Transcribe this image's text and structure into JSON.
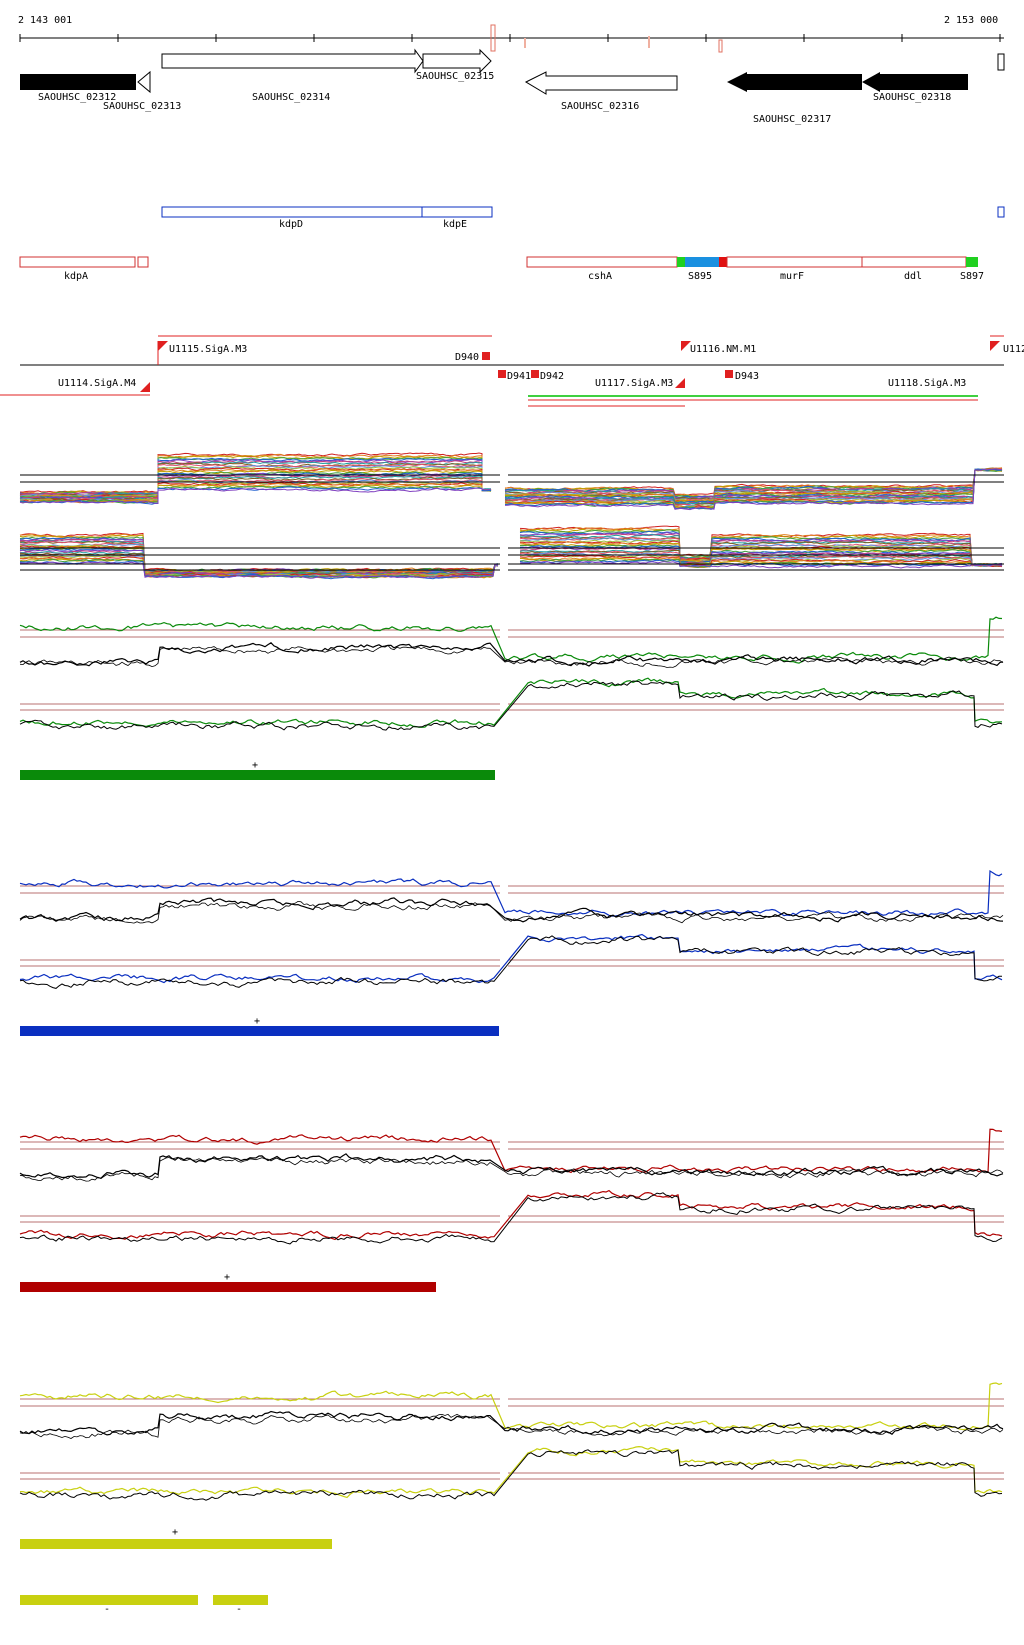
{
  "ruler": {
    "start_label": "2 143 001",
    "end_label": "2 153 000"
  },
  "genes": [
    {
      "label": "SAOUHSC_02312",
      "filled": true,
      "dir": "right"
    },
    {
      "label": "SAOUHSC_02313",
      "filled": false,
      "dir": "left"
    },
    {
      "label": "SAOUHSC_02314",
      "filled": false,
      "dir": "right"
    },
    {
      "label": "SAOUHSC_02315",
      "filled": false,
      "dir": "right"
    },
    {
      "label": "SAOUHSC_02316",
      "filled": false,
      "dir": "left"
    },
    {
      "label": "SAOUHSC_02317",
      "filled": true,
      "dir": "left"
    },
    {
      "label": "SAOUHSC_02318",
      "filled": true,
      "dir": "left"
    }
  ],
  "operons_blue": [
    {
      "label": "kdpD"
    },
    {
      "label": "kdpE"
    }
  ],
  "operons_red": [
    {
      "label": "kdpA"
    },
    {
      "label": "cshA"
    },
    {
      "label": "S895"
    },
    {
      "label": "murF"
    },
    {
      "label": "ddl"
    },
    {
      "label": "S897"
    }
  ],
  "segments": [
    {
      "label": "U1115.SigA.M3"
    },
    {
      "label": "D940"
    },
    {
      "label": "U1114.SigA.M4"
    },
    {
      "label": "D941"
    },
    {
      "label": "D942"
    },
    {
      "label": "U1117.SigA.M3"
    },
    {
      "label": "U1116.NM.M1"
    },
    {
      "label": "D943"
    },
    {
      "label": "U1118.SigA.M3"
    },
    {
      "label": "U112"
    }
  ],
  "strand_marks": {
    "plus": "+",
    "minus": "-"
  },
  "colors": {
    "green": "#0a8a0a",
    "blue": "#0a2fc0",
    "red": "#b00000",
    "yellow": "#c8d010",
    "rule": "#a04040"
  }
}
